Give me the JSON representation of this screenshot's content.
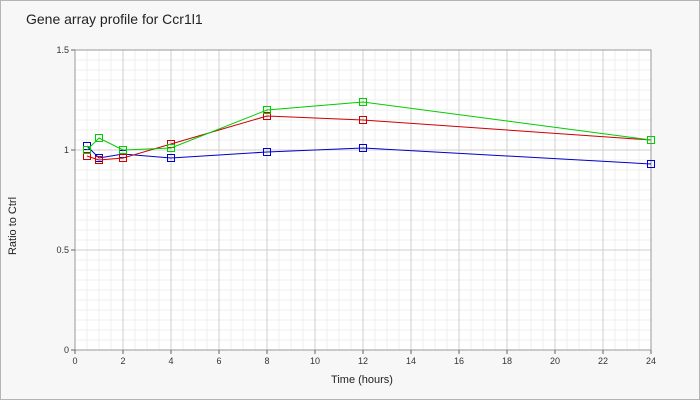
{
  "chart_data": {
    "type": "line",
    "title": "Gene array profile for Ccr1l1",
    "xlabel": "Time (hours)",
    "ylabel": "Ratio to Ctrl",
    "xlim": [
      0,
      24
    ],
    "ylim": [
      0,
      1.5
    ],
    "x_ticks": [
      0,
      2,
      4,
      6,
      8,
      10,
      12,
      14,
      16,
      18,
      20,
      22,
      24
    ],
    "y_ticks": [
      0,
      0.5,
      1,
      1.5
    ],
    "x_minor_step": 0.5,
    "y_minor_step": 0.05,
    "grid": true,
    "series": [
      {
        "color": "#0000cc",
        "x": [
          0.5,
          1,
          2,
          4,
          8,
          12,
          24
        ],
        "y": [
          1.02,
          0.96,
          0.98,
          0.96,
          0.99,
          1.01,
          0.93
        ]
      },
      {
        "color": "#cc0000",
        "x": [
          0.5,
          1,
          2,
          4,
          8,
          12,
          24
        ],
        "y": [
          0.97,
          0.95,
          0.96,
          1.03,
          1.17,
          1.15,
          1.05
        ]
      },
      {
        "color": "#00cc00",
        "x": [
          0.5,
          1,
          2,
          4,
          8,
          12,
          24
        ],
        "y": [
          1.0,
          1.06,
          1.0,
          1.01,
          1.2,
          1.24,
          1.05
        ]
      }
    ]
  }
}
